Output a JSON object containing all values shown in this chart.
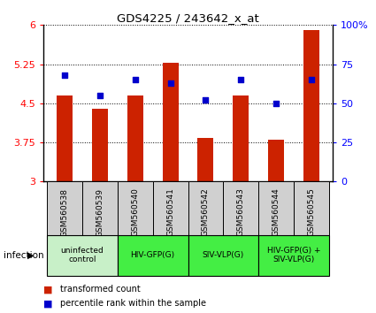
{
  "title": "GDS4225 / 243642_x_at",
  "samples": [
    "GSM560538",
    "GSM560539",
    "GSM560540",
    "GSM560541",
    "GSM560542",
    "GSM560543",
    "GSM560544",
    "GSM560545"
  ],
  "transformed_counts": [
    4.65,
    4.4,
    4.65,
    5.28,
    3.84,
    4.65,
    3.8,
    5.9
  ],
  "percentile_ranks": [
    68,
    55,
    65,
    63,
    52,
    65,
    50,
    65
  ],
  "bar_bottom": 3.0,
  "ylim_left": [
    3.0,
    6.0
  ],
  "ylim_right": [
    0,
    100
  ],
  "yticks_left": [
    3,
    3.75,
    4.5,
    5.25,
    6
  ],
  "yticks_right": [
    0,
    25,
    50,
    75,
    100
  ],
  "ytick_labels_left": [
    "3",
    "3.75",
    "4.5",
    "5.25",
    "6"
  ],
  "ytick_labels_right": [
    "0",
    "25",
    "50",
    "75",
    "100%"
  ],
  "bar_color": "#CC2200",
  "dot_color": "#0000CC",
  "groups": [
    {
      "label": "uninfected\ncontrol",
      "start": 0,
      "end": 2,
      "color": "#c8f0c8"
    },
    {
      "label": "HIV-GFP(G)",
      "start": 2,
      "end": 4,
      "color": "#44ee44"
    },
    {
      "label": "SIV-VLP(G)",
      "start": 4,
      "end": 6,
      "color": "#44ee44"
    },
    {
      "label": "HIV-GFP(G) +\nSIV-VLP(G)",
      "start": 6,
      "end": 8,
      "color": "#44ee44"
    }
  ],
  "sample_box_color": "#d0d0d0",
  "infection_label": "infection",
  "legend_item1": "transformed count",
  "legend_item2": "percentile rank within the sample",
  "bar_width": 0.45
}
